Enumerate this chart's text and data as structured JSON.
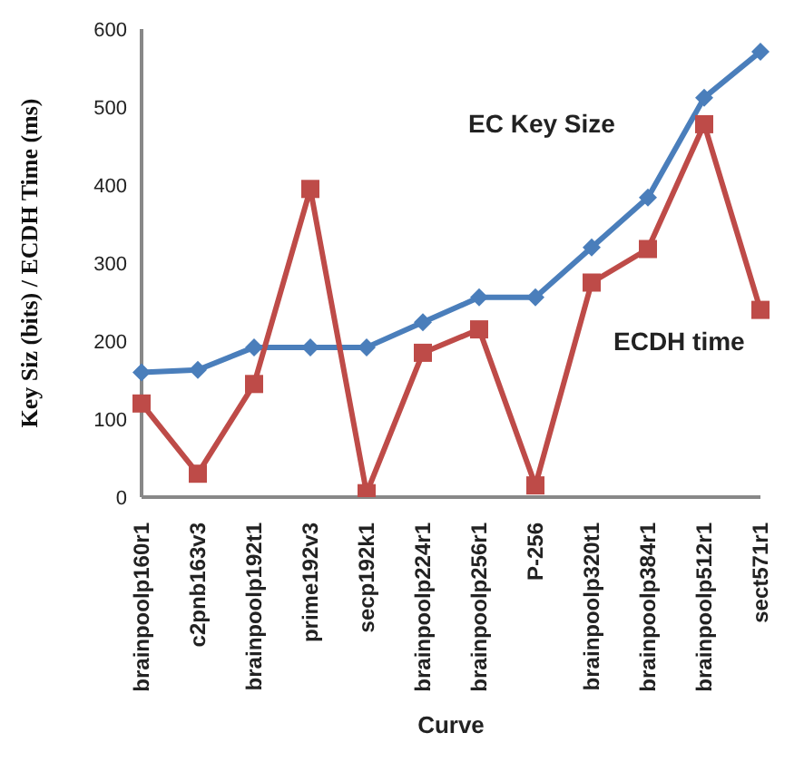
{
  "chart_data": {
    "type": "line",
    "xlabel": "Curve",
    "ylabel": "Key Siz (bits) / ECDH Time (ms)",
    "categories": [
      "brainpoolp160r1",
      "c2pnb163v3",
      "brainpoolp192t1",
      "prime192v3",
      "secp192k1",
      "brainpoolp224r1",
      "brainpoolp256r1",
      "P-256",
      "brainpoolp320t1",
      "brainpoolp384r1",
      "brainpoolp512r1",
      "sect571r1"
    ],
    "series": [
      {
        "name": "EC Key Size",
        "color": "#4a7ebb",
        "marker": "diamond",
        "values": [
          160,
          163,
          192,
          192,
          192,
          224,
          256,
          256,
          320,
          384,
          512,
          571
        ]
      },
      {
        "name": "ECDH time",
        "color": "#be4b48",
        "marker": "square",
        "values": [
          120,
          30,
          145,
          395,
          5,
          185,
          215,
          15,
          275,
          318,
          478,
          240
        ]
      }
    ],
    "ylim": [
      0,
      600
    ],
    "yticks": [
      0,
      100,
      200,
      300,
      400,
      500,
      600
    ],
    "grid": false
  }
}
